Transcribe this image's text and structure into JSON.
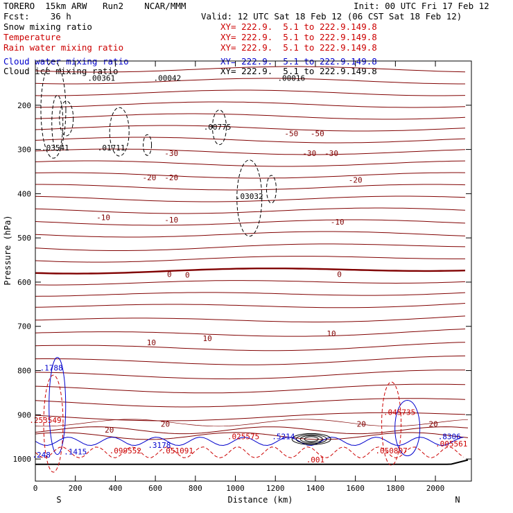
{
  "header": {
    "model": "TORERO  15km ARW   Run2    NCAR/MMM",
    "init": "Init: 00 UTC Fri 17 Feb 12",
    "fcst": "Fcst:    36 h",
    "valid": "Valid: 12 UTC Sat 18 Feb 12 (06 CST Sat 18 Feb 12)",
    "legend": [
      {
        "name": "Snow mixing ratio",
        "color": "#000000",
        "xy": ""
      },
      {
        "name": "Temperature",
        "color": "#cc0000",
        "xy": "XY= 222.9.  5.1 to 222.9.149.8"
      },
      {
        "name": "Rain water mixing ratio",
        "color": "#cc0000",
        "xy": "XY= 222.9.  5.1 to 222.9.149.8"
      },
      {
        "name": "Cloud water mixing ratio",
        "color": "#0000cc",
        "xy": "XY= 222.9.  5.1 to 222.9.149.8"
      },
      {
        "name": "Cloud ice mixing ratio",
        "color": "#000000",
        "xy": "XY= 222.9.  5.1 to 222.9.149.8"
      }
    ],
    "snow_xy": "XY= 222.9.  5.1 to 222.9.149.8"
  },
  "chart_data": {
    "type": "contour",
    "xlabel": "Distance (km)",
    "ylabel": "Pressure (hPa)",
    "xlim": [
      0,
      2180
    ],
    "ylim": [
      1050,
      100
    ],
    "x_ticks": [
      0,
      200,
      400,
      600,
      800,
      1000,
      1200,
      1400,
      1600,
      1800,
      2000
    ],
    "y_ticks": [
      200,
      300,
      400,
      500,
      600,
      700,
      800,
      900,
      1000
    ],
    "left_end_label": "S",
    "right_end_label": "N",
    "temperature_labels": [
      {
        "text": "-50",
        "x": 1280,
        "p": 270
      },
      {
        "text": "-50",
        "x": 1410,
        "p": 270
      },
      {
        "text": "-30",
        "x": 680,
        "p": 315
      },
      {
        "text": "-30",
        "x": 1370,
        "p": 315
      },
      {
        "text": "-30",
        "x": 1480,
        "p": 315
      },
      {
        "text": "-20",
        "x": 570,
        "p": 370
      },
      {
        "text": "-20",
        "x": 680,
        "p": 370
      },
      {
        "text": "-20",
        "x": 1600,
        "p": 375
      },
      {
        "text": "-10",
        "x": 340,
        "p": 460
      },
      {
        "text": "-10",
        "x": 680,
        "p": 465
      },
      {
        "text": "-10",
        "x": 1510,
        "p": 470
      },
      {
        "text": "0",
        "x": 670,
        "p": 588
      },
      {
        "text": "0",
        "x": 760,
        "p": 590
      },
      {
        "text": "0",
        "x": 1520,
        "p": 588
      },
      {
        "text": "10",
        "x": 580,
        "p": 743
      },
      {
        "text": "10",
        "x": 860,
        "p": 733
      },
      {
        "text": "10",
        "x": 1480,
        "p": 722
      },
      {
        "text": "20",
        "x": 370,
        "p": 940
      },
      {
        "text": "20",
        "x": 650,
        "p": 927
      },
      {
        "text": "20",
        "x": 1630,
        "p": 927
      },
      {
        "text": "20",
        "x": 1990,
        "p": 927
      }
    ],
    "snow_maxima": [
      {
        "text": ".03541",
        "x": 100,
        "p": 302
      },
      {
        "text": ".01711",
        "x": 380,
        "p": 302
      },
      {
        "text": ".00361",
        "x": 330,
        "p": 145
      },
      {
        "text": ".00042",
        "x": 660,
        "p": 145
      },
      {
        "text": ".00775",
        "x": 910,
        "p": 255
      },
      {
        "text": ".03032",
        "x": 1070,
        "p": 412
      },
      {
        "text": ".00016",
        "x": 1280,
        "p": 145
      }
    ],
    "cloud_water_maxima": [
      {
        "text": ".1788",
        "x": 80,
        "p": 800
      },
      {
        "text": ".1415",
        "x": 200,
        "p": 990
      },
      {
        "text": ".248",
        "x": 30,
        "p": 997
      },
      {
        "text": ".3178",
        "x": 620,
        "p": 975
      },
      {
        "text": ".5214",
        "x": 1240,
        "p": 955
      },
      {
        "text": ".8306",
        "x": 2070,
        "p": 955
      }
    ],
    "rain_maxima": [
      {
        "text": ".253549",
        "x": 50,
        "p": 918
      },
      {
        "text": ".099552",
        "x": 450,
        "p": 987
      },
      {
        "text": ".051091",
        "x": 710,
        "p": 987
      },
      {
        "text": ".025575",
        "x": 1040,
        "p": 955
      },
      {
        "text": ".050807",
        "x": 1780,
        "p": 987
      },
      {
        "text": ".045735",
        "x": 1820,
        "p": 900
      },
      {
        "text": ".005561",
        "x": 2080,
        "p": 972
      },
      {
        "text": ".001",
        "x": 1400,
        "p": 1008
      }
    ]
  }
}
